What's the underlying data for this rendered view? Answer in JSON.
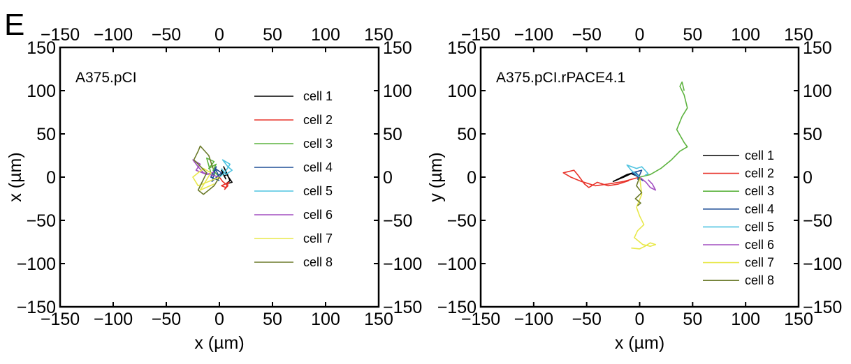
{
  "panel_letter": "E",
  "colors": {
    "cell 1": "#000000",
    "cell 2": "#e8332a",
    "cell 3": "#5cb33e",
    "cell 4": "#1f4e96",
    "cell 5": "#4fc3e0",
    "cell 6": "#a24fc1",
    "cell 7": "#e8e84a",
    "cell 8": "#6b7a2a"
  },
  "chart_data": [
    {
      "type": "line",
      "title": "A375.pCI",
      "xlabel": "x (µm)",
      "ylabel": "x (µm)",
      "xlim": [
        -150,
        150
      ],
      "ylim": [
        -150,
        150
      ],
      "xticks": [
        -150,
        -100,
        -50,
        0,
        50,
        100,
        150
      ],
      "yticks": [
        -150,
        -100,
        -50,
        0,
        50,
        100,
        150
      ],
      "mirror_axes": true,
      "legend_position": "right",
      "series": [
        {
          "name": "cell 1",
          "x": [
            0,
            3,
            6,
            2,
            8,
            4,
            10,
            6,
            12,
            7,
            4
          ],
          "y": [
            0,
            5,
            -2,
            8,
            2,
            12,
            -4,
            -8,
            -6,
            3,
            1
          ]
        },
        {
          "name": "cell 2",
          "x": [
            0,
            3,
            8,
            5,
            9,
            2,
            6
          ],
          "y": [
            0,
            -5,
            -10,
            -14,
            -6,
            -10,
            -12
          ]
        },
        {
          "name": "cell 3",
          "x": [
            0,
            -6,
            -3,
            -10,
            -5,
            -12,
            -8,
            -4
          ],
          "y": [
            0,
            8,
            15,
            10,
            18,
            22,
            5,
            2
          ]
        },
        {
          "name": "cell 4",
          "x": [
            0,
            -4,
            2,
            -7,
            -3,
            -8,
            0
          ],
          "y": [
            0,
            10,
            5,
            -5,
            12,
            0,
            -4
          ]
        },
        {
          "name": "cell 5",
          "x": [
            0,
            5,
            10,
            3,
            8,
            12,
            6,
            2
          ],
          "y": [
            0,
            5,
            15,
            20,
            12,
            8,
            3,
            10
          ]
        },
        {
          "name": "cell 6",
          "x": [
            0,
            -15,
            -20,
            -25,
            -18,
            -22,
            -12,
            -5
          ],
          "y": [
            0,
            5,
            12,
            20,
            15,
            8,
            3,
            6
          ]
        },
        {
          "name": "cell 7",
          "x": [
            0,
            -10,
            -20,
            -25,
            -15,
            -8,
            -18,
            -5
          ],
          "y": [
            0,
            -5,
            -10,
            0,
            10,
            5,
            -15,
            -8
          ]
        },
        {
          "name": "cell 8",
          "x": [
            0,
            -5,
            -15,
            -20,
            -12,
            -24,
            -20,
            -18,
            -10,
            -6
          ],
          "y": [
            0,
            -10,
            -20,
            -15,
            5,
            20,
            30,
            36,
            25,
            10
          ]
        }
      ]
    },
    {
      "type": "line",
      "title": "A375.pCI.rPACE4.1",
      "xlabel": "x (µm)",
      "ylabel": "y (µm)",
      "xlim": [
        -150,
        150
      ],
      "ylim": [
        -150,
        150
      ],
      "xticks": [
        -150,
        -100,
        -50,
        0,
        50,
        100,
        150
      ],
      "yticks": [
        -150,
        -100,
        -50,
        0,
        50,
        100,
        150
      ],
      "mirror_axes": true,
      "legend_position": "right",
      "series": [
        {
          "name": "cell 1",
          "x": [
            0,
            -6,
            -12,
            -20,
            -25,
            -15,
            -8,
            -2
          ],
          "y": [
            0,
            5,
            3,
            -2,
            -5,
            0,
            4,
            1
          ]
        },
        {
          "name": "cell 2",
          "x": [
            0,
            -15,
            -30,
            -42,
            -55,
            -65,
            -72,
            -62,
            -58,
            -52,
            -48,
            -40,
            -30,
            -20,
            -10
          ],
          "y": [
            0,
            -5,
            -8,
            -10,
            -5,
            0,
            5,
            8,
            2,
            -8,
            -12,
            -6,
            -10,
            -8,
            -4
          ]
        },
        {
          "name": "cell 3",
          "x": [
            0,
            10,
            20,
            30,
            38,
            45,
            42,
            35,
            40,
            45,
            42,
            38,
            40,
            42
          ],
          "y": [
            0,
            3,
            10,
            20,
            30,
            35,
            40,
            55,
            70,
            80,
            95,
            105,
            110,
            100
          ]
        },
        {
          "name": "cell 4",
          "x": [
            0,
            -4,
            3,
            -7,
            2,
            -2
          ],
          "y": [
            0,
            6,
            -4,
            5,
            8,
            -3
          ]
        },
        {
          "name": "cell 5",
          "x": [
            0,
            -8,
            -12,
            -3,
            2,
            8,
            5
          ],
          "y": [
            0,
            8,
            14,
            10,
            12,
            4,
            2
          ]
        },
        {
          "name": "cell 6",
          "x": [
            0,
            6,
            10,
            15,
            12,
            8
          ],
          "y": [
            0,
            -6,
            -12,
            -15,
            -8,
            -3
          ]
        },
        {
          "name": "cell 7",
          "x": [
            0,
            2,
            -3,
            0,
            4,
            -2,
            -5,
            3,
            10,
            15,
            10,
            5,
            0,
            -8
          ],
          "y": [
            0,
            -20,
            -35,
            -45,
            -55,
            -62,
            -70,
            -78,
            -80,
            -78,
            -76,
            -80,
            -83,
            -82
          ]
        },
        {
          "name": "cell 8",
          "x": [
            0,
            -3,
            2,
            -4,
            1,
            -2
          ],
          "y": [
            0,
            -10,
            -18,
            -25,
            -30,
            -33
          ]
        }
      ]
    }
  ]
}
